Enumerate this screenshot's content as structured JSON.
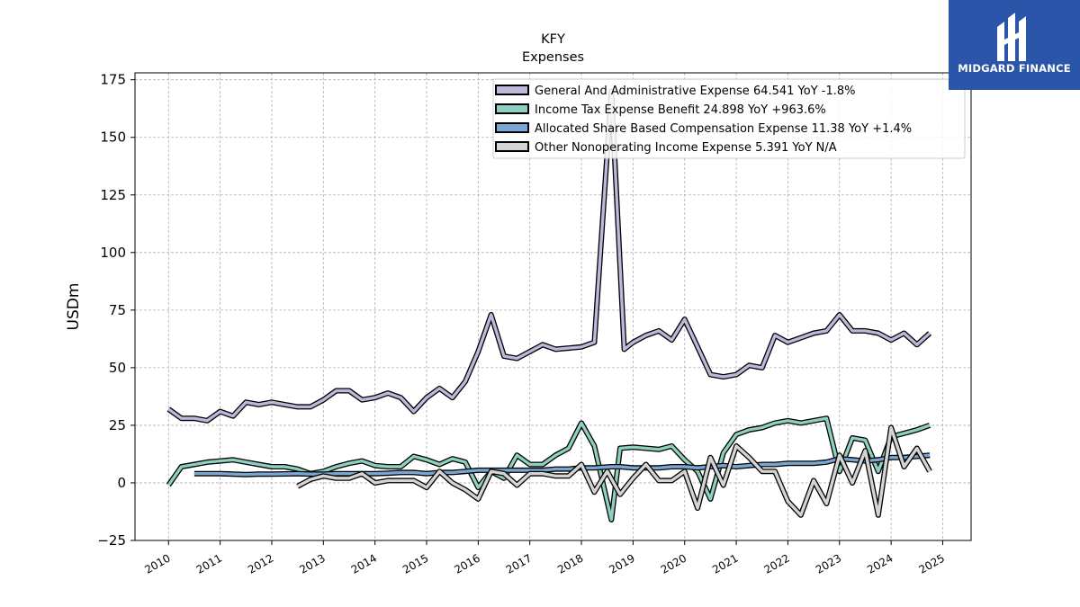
{
  "brand": {
    "name": "MIDGARD FINANCE",
    "bg_color": "#2a55a8"
  },
  "chart_data": {
    "type": "line",
    "title": "KFY",
    "subtitle": "Expenses",
    "ylabel": "USDm",
    "xlabel": "",
    "ylim": [
      -25,
      178
    ],
    "xlim": [
      2009.35,
      2025.55
    ],
    "yticks": [
      -25,
      0,
      25,
      50,
      75,
      100,
      125,
      150,
      175
    ],
    "xticks": [
      "2010",
      "2011",
      "2012",
      "2013",
      "2014",
      "2015",
      "2016",
      "2017",
      "2018",
      "2019",
      "2020",
      "2021",
      "2022",
      "2023",
      "2024",
      "2025"
    ],
    "grid": true,
    "legend_position": "top-right",
    "series": [
      {
        "name": "General And Administrative Expense",
        "legend_label": "General And Administrative Expense  64.541 YoY -1.8%",
        "color": "#bcb8d9",
        "x": [
          2010.0,
          2010.25,
          2010.5,
          2010.75,
          2011.0,
          2011.25,
          2011.5,
          2011.75,
          2012.0,
          2012.25,
          2012.5,
          2012.75,
          2013.0,
          2013.25,
          2013.5,
          2013.75,
          2014.0,
          2014.25,
          2014.5,
          2014.75,
          2015.0,
          2015.25,
          2015.5,
          2015.75,
          2016.0,
          2016.25,
          2016.5,
          2016.75,
          2017.0,
          2017.25,
          2017.5,
          2017.75,
          2018.0,
          2018.25,
          2018.58,
          2018.83,
          2019.0,
          2019.25,
          2019.5,
          2019.75,
          2020.0,
          2020.25,
          2020.5,
          2020.75,
          2021.0,
          2021.25,
          2021.5,
          2021.75,
          2022.0,
          2022.25,
          2022.5,
          2022.75,
          2023.0,
          2023.25,
          2023.5,
          2023.75,
          2024.0,
          2024.25,
          2024.5,
          2024.75
        ],
        "values": [
          32,
          28,
          28,
          27,
          31,
          29,
          35,
          34,
          35,
          34,
          33,
          33,
          36,
          40,
          40,
          36,
          37,
          39,
          37,
          31,
          37,
          41,
          37,
          44,
          57,
          73,
          55,
          54,
          57,
          60,
          58,
          58.5,
          59,
          61,
          170,
          58,
          61,
          64,
          66,
          62,
          71,
          59,
          47,
          46,
          47,
          51,
          50,
          64,
          61,
          63,
          65,
          66,
          73,
          66,
          66,
          65,
          62,
          65,
          60,
          65
        ]
      },
      {
        "name": "Income Tax Expense Benefit",
        "legend_label": "Income Tax Expense Benefit  24.898 YoY +963.6%",
        "color": "#8dcfc0",
        "x": [
          2010.0,
          2010.25,
          2010.5,
          2010.75,
          2011.0,
          2011.25,
          2011.5,
          2011.75,
          2012.0,
          2012.25,
          2012.5,
          2012.75,
          2013.0,
          2013.25,
          2013.5,
          2013.75,
          2014.0,
          2014.25,
          2014.5,
          2014.75,
          2015.0,
          2015.25,
          2015.5,
          2015.75,
          2016.0,
          2016.25,
          2016.5,
          2016.75,
          2017.0,
          2017.25,
          2017.5,
          2017.75,
          2018.0,
          2018.25,
          2018.58,
          2018.75,
          2019.0,
          2019.25,
          2019.5,
          2019.75,
          2020.0,
          2020.25,
          2020.5,
          2020.75,
          2021.0,
          2021.25,
          2021.5,
          2021.75,
          2022.0,
          2022.25,
          2022.5,
          2022.75,
          2023.0,
          2023.25,
          2023.5,
          2023.75,
          2024.0,
          2024.25,
          2024.5,
          2024.75
        ],
        "values": [
          -1,
          7,
          8,
          9,
          9.5,
          10,
          9,
          8,
          7,
          7,
          6,
          4,
          5,
          7,
          8.5,
          9.5,
          7.5,
          7,
          7,
          11.5,
          10,
          8,
          10.5,
          9,
          -2,
          5,
          2,
          12,
          8,
          8,
          12,
          15,
          26,
          16,
          -16,
          15,
          15.5,
          15,
          14.5,
          16,
          10,
          5,
          -7,
          13,
          21,
          23,
          24,
          26,
          27,
          26,
          27,
          28,
          5,
          19.5,
          18.5,
          5,
          20,
          21.5,
          23,
          25
        ]
      },
      {
        "name": "Allocated Share Based Compensation Expense",
        "legend_label": "Allocated Share Based Compensation Expense  11.38 YoY +1.4%",
        "color": "#7aa6d3",
        "x": [
          2010.5,
          2010.75,
          2011.0,
          2011.25,
          2011.5,
          2011.75,
          2012.0,
          2012.25,
          2012.5,
          2012.75,
          2013.0,
          2013.25,
          2013.5,
          2013.75,
          2014.0,
          2014.25,
          2014.5,
          2014.75,
          2015.0,
          2015.25,
          2015.5,
          2015.75,
          2016.0,
          2016.25,
          2016.5,
          2016.75,
          2017.0,
          2017.25,
          2017.5,
          2017.75,
          2018.0,
          2018.25,
          2018.58,
          2018.75,
          2019.0,
          2019.25,
          2019.5,
          2019.75,
          2020.0,
          2020.25,
          2020.5,
          2020.75,
          2021.0,
          2021.25,
          2021.5,
          2021.75,
          2022.0,
          2022.25,
          2022.5,
          2022.75,
          2023.0,
          2023.25,
          2023.5,
          2023.75,
          2024.0,
          2024.25,
          2024.5,
          2024.75
        ],
        "values": [
          4,
          4,
          4,
          3.8,
          3.6,
          3.8,
          3.8,
          3.9,
          4,
          3.8,
          3.8,
          4,
          4,
          4,
          4,
          4.2,
          4.5,
          4.5,
          4,
          4.5,
          4.5,
          5,
          5.5,
          5.5,
          5.5,
          5.5,
          5.5,
          5.5,
          6,
          6,
          6.5,
          6.5,
          7,
          7,
          6.5,
          6.5,
          6.5,
          7,
          7,
          6.5,
          7,
          7.5,
          7,
          7.5,
          8,
          8,
          8.5,
          8.5,
          8.5,
          9,
          10.5,
          10,
          9.5,
          10,
          11,
          11,
          11.5,
          12
        ]
      },
      {
        "name": "Other Nonoperating Income Expense",
        "legend_label": "Other Nonoperating Income Expense  5.391 YoY N/A",
        "color": "#d4d4d4",
        "x": [
          2012.5,
          2012.75,
          2013.0,
          2013.25,
          2013.5,
          2013.75,
          2014.0,
          2014.25,
          2014.5,
          2014.75,
          2015.0,
          2015.25,
          2015.5,
          2015.75,
          2016.0,
          2016.25,
          2016.5,
          2016.75,
          2017.0,
          2017.25,
          2017.5,
          2017.75,
          2018.0,
          2018.25,
          2018.5,
          2018.75,
          2019.0,
          2019.25,
          2019.5,
          2019.75,
          2020.0,
          2020.25,
          2020.5,
          2020.75,
          2021.0,
          2021.25,
          2021.5,
          2021.75,
          2022.0,
          2022.25,
          2022.5,
          2022.75,
          2023.0,
          2023.25,
          2023.5,
          2023.75,
          2024.0,
          2024.25,
          2024.5,
          2024.75
        ],
        "values": [
          -1.5,
          1.5,
          3,
          2,
          2,
          4,
          0,
          1,
          1,
          1,
          -2,
          5,
          0,
          -3,
          -7,
          5,
          4,
          -1,
          4,
          4,
          3,
          3,
          8,
          -4,
          5,
          -5,
          2,
          8,
          1,
          1,
          5,
          -11,
          11,
          -1,
          16,
          11,
          5,
          5,
          -8,
          -14,
          1,
          -9,
          12,
          0,
          14,
          -14,
          24,
          7,
          15,
          5
        ]
      }
    ]
  }
}
